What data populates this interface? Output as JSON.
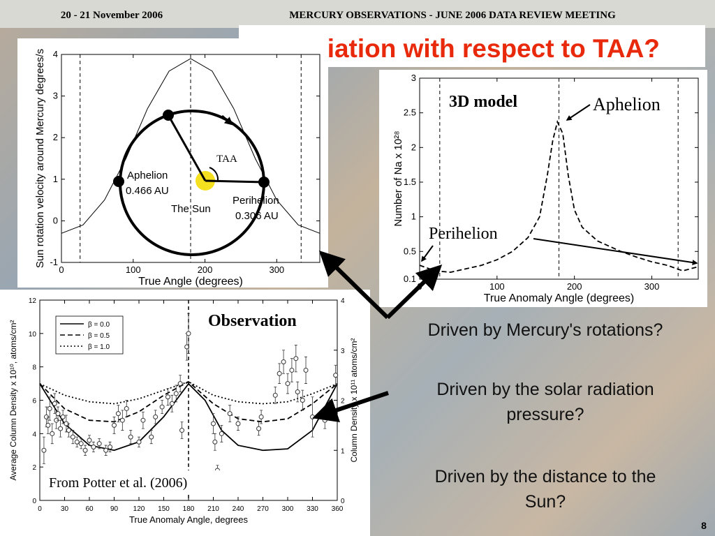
{
  "header": {
    "date": "20 - 21 November 2006",
    "meeting": "MERCURY OBSERVATIONS - JUNE 2006 DATA REVIEW MEETING"
  },
  "title": "Variation with respect to TAA?",
  "questions": [
    [
      "Driven by Mercury's rotations?"
    ],
    [
      "Driven by the solar radiation",
      "pressure?"
    ],
    [
      "Driven by the distance to the",
      "Sun?"
    ]
  ],
  "page_number": "8",
  "orbit_diagram": {
    "taa": "TAA",
    "aphelion": "Aphelion",
    "aphelion_distance": "0.466 AU",
    "perihelion": "Perihelion",
    "perihelion_distance": "0.306 AU",
    "sun": "The Sun"
  },
  "chart_data": [
    {
      "type": "line",
      "xlabel": "True Angle (degrees)",
      "ylabel": "Sun rotation velocity around Mercury degrees/s",
      "xlim": [
        0,
        360
      ],
      "xticks": [
        0,
        100,
        200,
        300
      ],
      "ylim": [
        -1,
        4
      ],
      "yticks": [
        -1,
        0,
        1,
        2,
        3,
        4
      ],
      "vlines": [
        26,
        180,
        334
      ],
      "series": [
        {
          "color": "#000000",
          "line_style": "solid",
          "x": [
            0,
            30,
            60,
            90,
            120,
            150,
            180,
            210,
            240,
            270,
            300,
            330,
            360
          ],
          "values": [
            -0.3,
            -0.1,
            0.5,
            1.5,
            2.7,
            3.6,
            3.9,
            3.6,
            2.7,
            1.5,
            0.5,
            -0.1,
            -0.3
          ]
        }
      ]
    },
    {
      "type": "line",
      "xlabel": "True Anomaly Angle (degrees)",
      "ylabel": "Number of Na x 10²⁸",
      "annotations": {
        "model": "3D model",
        "aphelion": "Aphelion",
        "perihelion": "Perihelion"
      },
      "xlim": [
        0,
        360
      ],
      "xticks": [
        0,
        100,
        200,
        300
      ],
      "ylim": [
        0.1,
        3
      ],
      "yticks": [
        0.1,
        0.5,
        1,
        1.5,
        2,
        2.5,
        3
      ],
      "vlines": [
        26,
        180,
        334
      ],
      "series": [
        {
          "color": "#000000",
          "line_style": "dashed",
          "x": [
            0,
            20,
            40,
            60,
            80,
            100,
            120,
            140,
            155,
            165,
            172,
            178,
            185,
            192,
            200,
            210,
            230,
            260,
            280,
            300,
            320,
            340,
            360
          ],
          "values": [
            0.3,
            0.22,
            0.2,
            0.25,
            0.3,
            0.38,
            0.5,
            0.7,
            1.0,
            1.6,
            2.1,
            2.37,
            2.2,
            1.6,
            1.1,
            0.85,
            0.65,
            0.5,
            0.42,
            0.35,
            0.3,
            0.22,
            0.28
          ]
        }
      ]
    },
    {
      "type": "line",
      "xlabel": "True Anomaly Angle, degrees",
      "ylabel": "Average Column Density x 10¹⁰, atoms/cm²",
      "y2label": "Column Density x 10¹¹ atoms/cm²",
      "annotations": {
        "observation": "Observation",
        "source": "From Potter et al. (2006)"
      },
      "xlim": [
        0,
        360
      ],
      "xticks": [
        0,
        30,
        60,
        90,
        120,
        150,
        180,
        210,
        240,
        270,
        300,
        330,
        360
      ],
      "ylim": [
        0,
        12
      ],
      "yticks": [
        0,
        2,
        4,
        6,
        8,
        10,
        12
      ],
      "y2lim": [
        0,
        4
      ],
      "y2ticks": [
        0,
        1,
        2,
        3,
        4
      ],
      "vlines": [
        180
      ],
      "series": [
        {
          "name": "β = 0.0",
          "color": "#000000",
          "line_style": "solid",
          "axis": "y2",
          "x": [
            0,
            30,
            60,
            90,
            120,
            150,
            180,
            200,
            220,
            240,
            270,
            300,
            330,
            360
          ],
          "values": [
            2.33,
            1.53,
            1.1,
            1.0,
            1.17,
            1.67,
            2.33,
            2.0,
            1.4,
            1.1,
            1.0,
            1.03,
            1.4,
            2.33
          ]
        },
        {
          "name": "β = 0.5",
          "color": "#000000",
          "line_style": "dashed",
          "axis": "y2",
          "x": [
            0,
            30,
            60,
            90,
            120,
            150,
            180,
            210,
            240,
            270,
            300,
            330,
            360
          ],
          "values": [
            2.33,
            1.83,
            1.6,
            1.57,
            1.77,
            2.1,
            2.37,
            1.93,
            1.63,
            1.57,
            1.63,
            1.93,
            2.33
          ]
        },
        {
          "name": "β = 1.0",
          "color": "#000000",
          "line_style": "dotted",
          "axis": "y2",
          "x": [
            0,
            30,
            60,
            90,
            120,
            150,
            180,
            210,
            240,
            270,
            300,
            330,
            360
          ],
          "values": [
            2.33,
            2.1,
            1.97,
            1.93,
            2.03,
            2.2,
            2.37,
            2.1,
            1.97,
            1.93,
            1.97,
            2.13,
            2.33
          ]
        }
      ],
      "observations": {
        "x": [
          5,
          8,
          10,
          12,
          15,
          18,
          20,
          22,
          25,
          28,
          32,
          35,
          40,
          45,
          50,
          55,
          60,
          65,
          72,
          80,
          85,
          90,
          95,
          100,
          105,
          110,
          120,
          125,
          135,
          140,
          148,
          155,
          160,
          165,
          170,
          172,
          178,
          180,
          210,
          212,
          215,
          220,
          230,
          240,
          265,
          268,
          285,
          290,
          295,
          300,
          305,
          310,
          312,
          318,
          322,
          330,
          345,
          350,
          358
        ],
        "values": [
          3,
          5,
          4.5,
          5.5,
          4,
          5.8,
          4.8,
          5.2,
          4.3,
          5.0,
          4.6,
          4.2,
          3.8,
          3.5,
          3.4,
          3.0,
          3.6,
          3.2,
          3.4,
          3.0,
          3.2,
          4.5,
          5.2,
          4.8,
          5.5,
          3.8,
          3.5,
          4.8,
          3.8,
          5.0,
          5.6,
          6.2,
          5.8,
          6.4,
          7.0,
          4.2,
          9.2,
          10.0,
          4.6,
          3.5,
          1.8,
          4.0,
          5.2,
          4.6,
          4.3,
          5.0,
          6.3,
          7.6,
          8.3,
          7.0,
          7.8,
          8.5,
          6.5,
          6.0,
          7.8,
          5.0,
          4.8,
          5.5,
          7.5
        ],
        "errors": [
          0.8,
          0.6,
          0.5,
          0.7,
          0.6,
          0.6,
          0.5,
          0.4,
          0.5,
          0.4,
          0.5,
          0.4,
          0.4,
          0.3,
          0.3,
          0.3,
          0.3,
          0.3,
          0.3,
          0.3,
          0.3,
          0.5,
          0.5,
          0.6,
          0.5,
          0.4,
          0.3,
          0.5,
          0.4,
          0.4,
          0.4,
          0.5,
          0.5,
          0.5,
          0.5,
          0.5,
          0.8,
          1.2,
          0.6,
          0.5,
          0.3,
          0.5,
          0.5,
          0.4,
          0.4,
          0.4,
          0.5,
          0.6,
          0.7,
          0.6,
          0.7,
          0.8,
          0.6,
          0.6,
          0.8,
          1.2,
          0.5,
          0.5,
          0.6
        ]
      }
    }
  ]
}
